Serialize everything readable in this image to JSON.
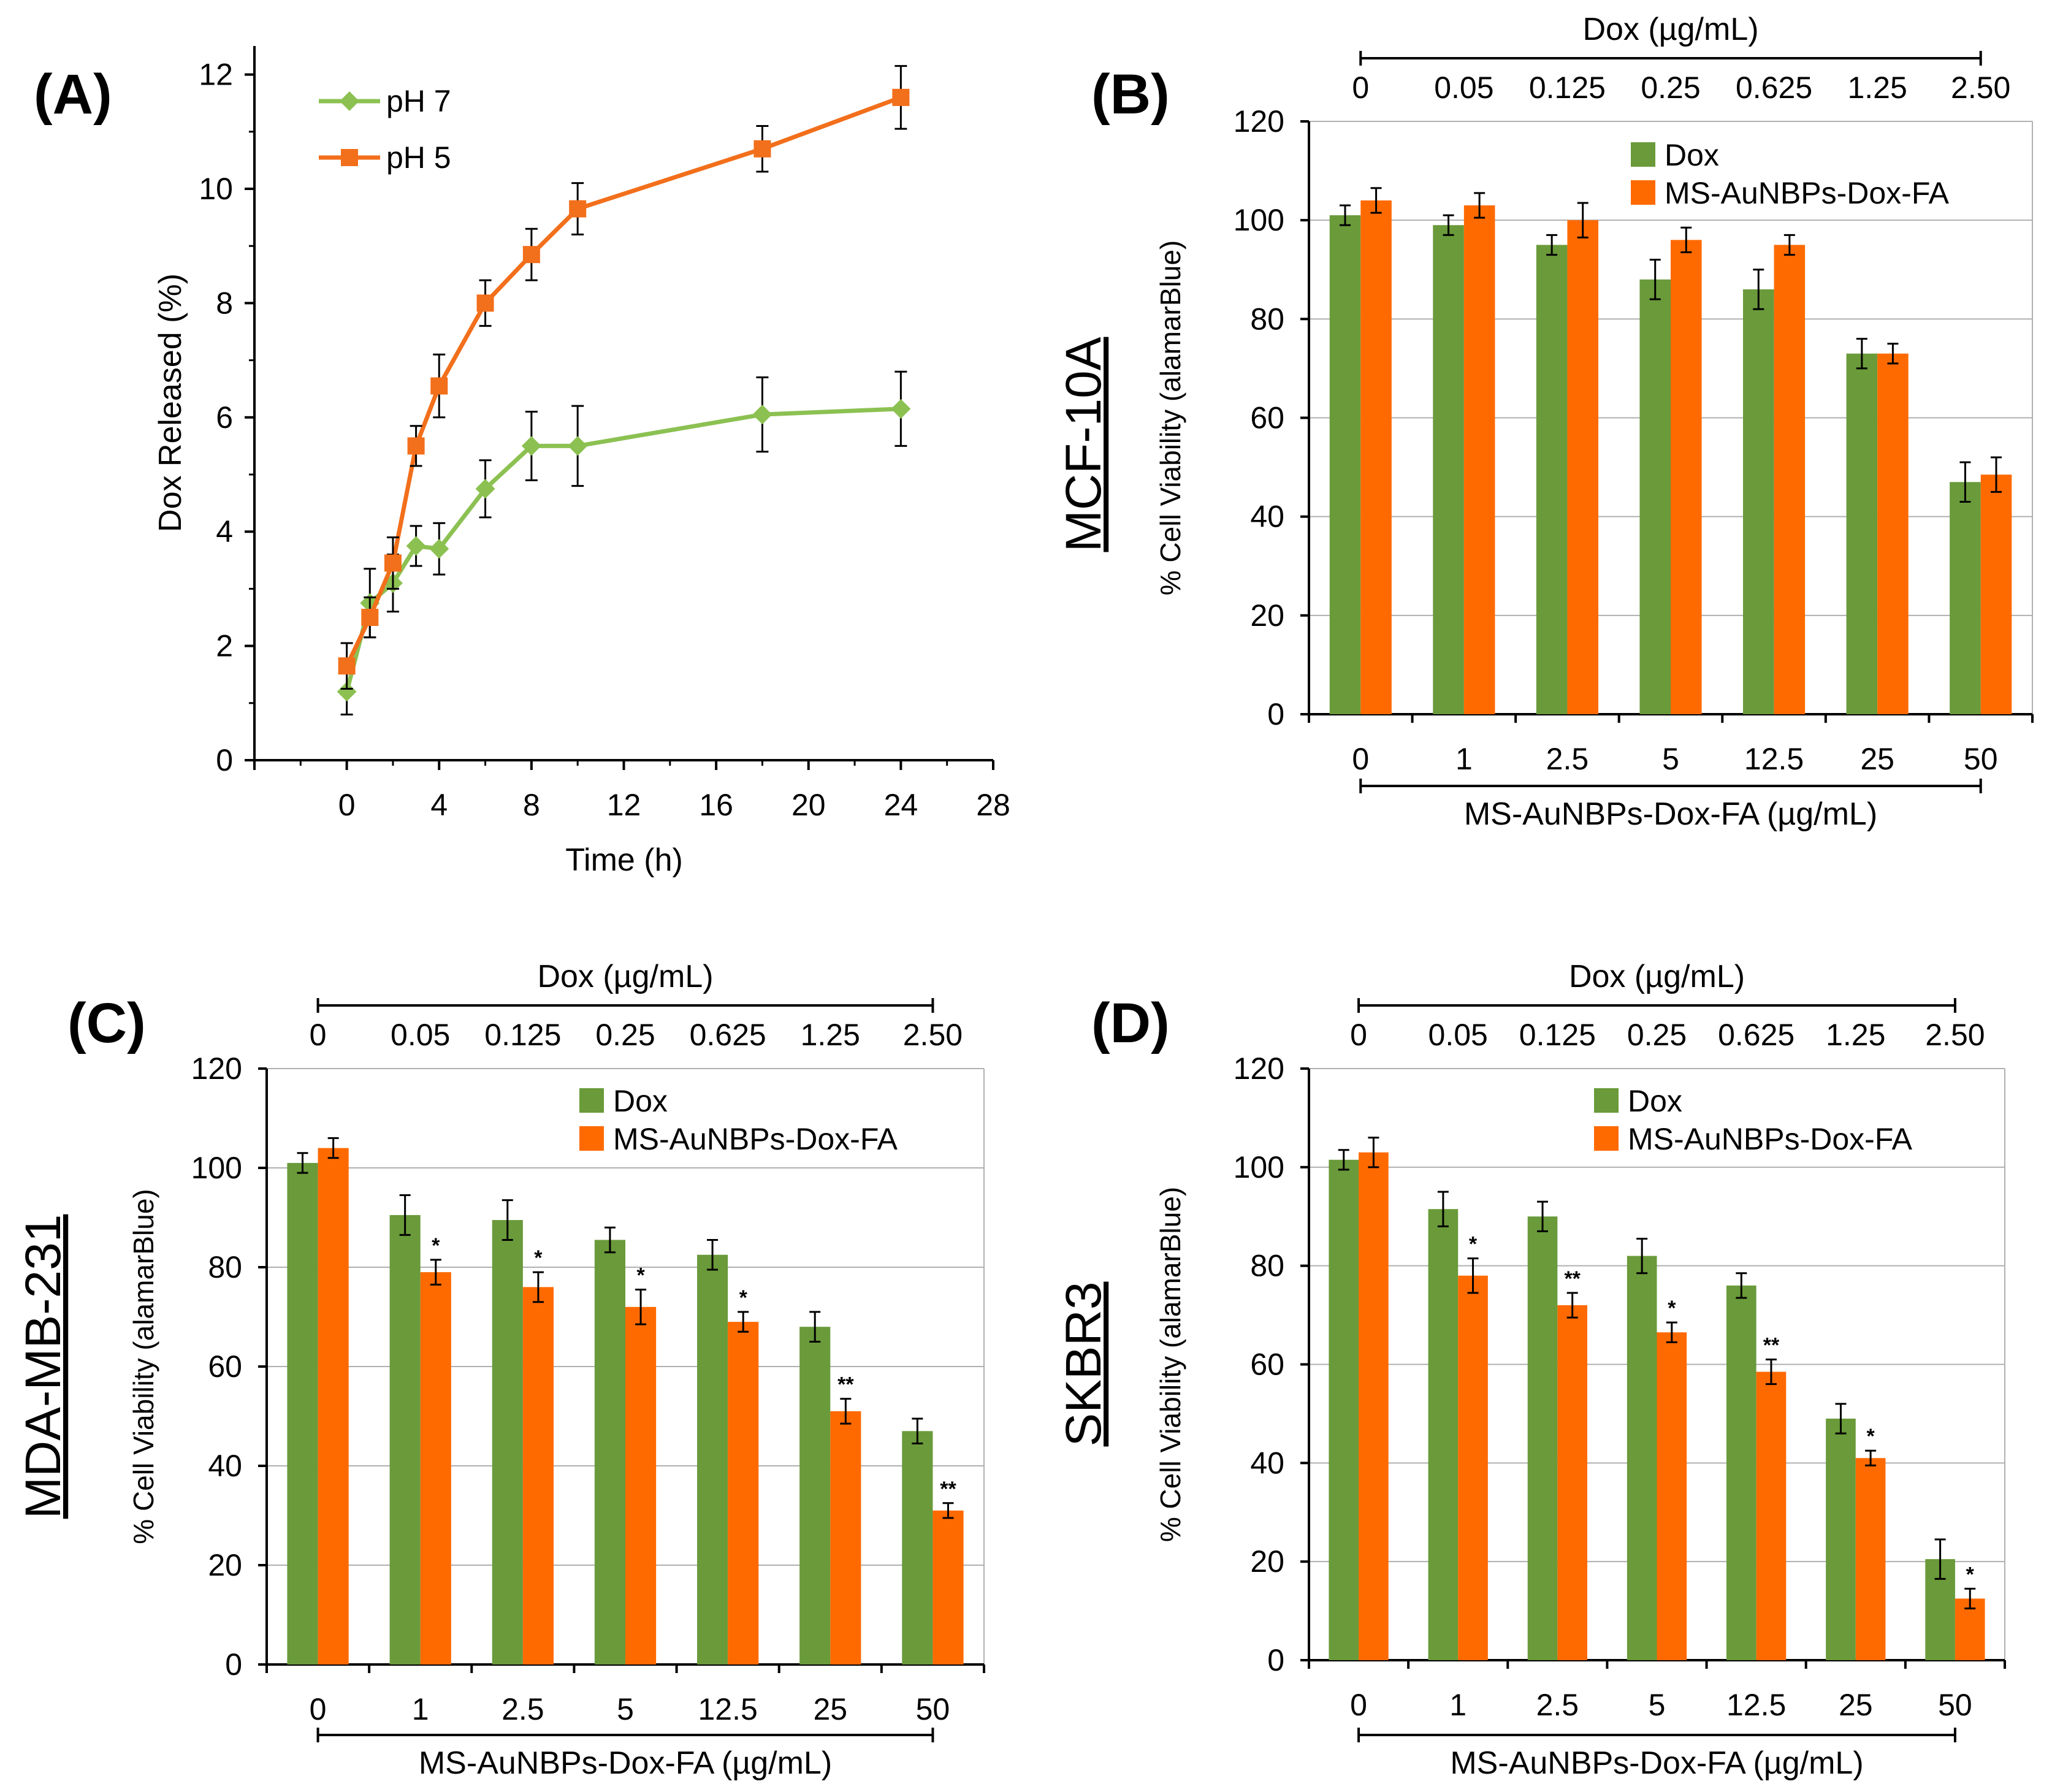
{
  "colors": {
    "green": "#6a9a3a",
    "orange": "#ff6a00",
    "line_green": "#8cc152",
    "line_orange": "#f26f1b"
  },
  "chart_data": [
    {
      "panel": "(A)",
      "type": "line",
      "xlabel": "Time (h)",
      "ylabel": "Dox Released (%)",
      "xlim": [
        -4,
        28
      ],
      "ylim": [
        0,
        12.5
      ],
      "xticks": [
        "0",
        "4",
        "8",
        "12",
        "16",
        "20",
        "24",
        "28"
      ],
      "yticks": [
        "0",
        "2",
        "4",
        "6",
        "8",
        "10",
        "12"
      ],
      "series": [
        {
          "name": "pH 7",
          "color": "#8cc152",
          "marker": "diamond",
          "x": [
            0,
            1,
            2,
            3,
            4,
            6,
            8,
            10,
            18,
            24
          ],
          "y": [
            1.2,
            2.75,
            3.1,
            3.75,
            3.7,
            4.75,
            5.5,
            5.5,
            6.05,
            6.15
          ],
          "err": [
            0.4,
            0.6,
            0.5,
            0.35,
            0.45,
            0.5,
            0.6,
            0.7,
            0.65,
            0.65
          ]
        },
        {
          "name": "pH 5",
          "color": "#f26f1b",
          "marker": "square",
          "x": [
            0,
            1,
            2,
            3,
            4,
            6,
            8,
            10,
            18,
            24
          ],
          "y": [
            1.65,
            2.5,
            3.45,
            5.5,
            6.55,
            8.0,
            8.85,
            9.65,
            10.7,
            11.6
          ],
          "err": [
            0.4,
            0.35,
            0.45,
            0.35,
            0.55,
            0.4,
            0.45,
            0.45,
            0.4,
            0.55
          ]
        }
      ]
    },
    {
      "panel": "(B)",
      "type": "bar",
      "cell_line": "MCF-10A",
      "ylabel": "% Cell Viability (alamarBlue)",
      "top_axis_title": "Dox (µg/mL)",
      "top_ticks": [
        "0",
        "0.05",
        "0.125",
        "0.25",
        "0.625",
        "1.25",
        "2.50"
      ],
      "bottom_axis_title": "MS-AuNBPs-Dox-FA (µg/mL)",
      "categories": [
        "0",
        "1",
        "2.5",
        "5",
        "12.5",
        "25",
        "50"
      ],
      "ylim": [
        0,
        120
      ],
      "yticks": [
        "0",
        "20",
        "40",
        "60",
        "80",
        "100",
        "120"
      ],
      "series": [
        {
          "name": "Dox",
          "values": [
            101,
            99,
            95,
            88,
            86,
            73,
            47
          ],
          "err": [
            2,
            2,
            2,
            4,
            4,
            3,
            4
          ]
        },
        {
          "name": "MS-AuNBPs-Dox-FA",
          "values": [
            104,
            103,
            100,
            96,
            95,
            73,
            48.5
          ],
          "err": [
            2.5,
            2.5,
            3.5,
            2.5,
            2,
            2,
            3.5
          ],
          "stars": [
            "",
            "",
            "",
            "",
            "",
            "",
            ""
          ]
        }
      ]
    },
    {
      "panel": "(C)",
      "type": "bar",
      "cell_line": "MDA-MB-231",
      "ylabel": "% Cell Viability (alamarBlue)",
      "top_axis_title": "Dox (µg/mL)",
      "top_ticks": [
        "0",
        "0.05",
        "0.125",
        "0.25",
        "0.625",
        "1.25",
        "2.50"
      ],
      "bottom_axis_title": "MS-AuNBPs-Dox-FA (µg/mL)",
      "categories": [
        "0",
        "1",
        "2.5",
        "5",
        "12.5",
        "25",
        "50"
      ],
      "ylim": [
        0,
        120
      ],
      "yticks": [
        "0",
        "20",
        "40",
        "60",
        "80",
        "100",
        "120"
      ],
      "series": [
        {
          "name": "Dox",
          "values": [
            101,
            90.5,
            89.5,
            85.5,
            82.5,
            68,
            47
          ],
          "err": [
            2,
            4,
            4,
            2.5,
            3,
            3,
            2.5
          ]
        },
        {
          "name": "MS-AuNBPs-Dox-FA",
          "values": [
            104,
            79,
            76,
            72,
            69,
            51,
            31
          ],
          "err": [
            2,
            2.5,
            3,
            3.5,
            2,
            2.5,
            1.5
          ],
          "stars": [
            "",
            "*",
            "*",
            "*",
            "*",
            "**",
            "**"
          ]
        }
      ]
    },
    {
      "panel": "(D)",
      "type": "bar",
      "cell_line": "SKBR3",
      "ylabel": "% Cell Viability (alamarBlue)",
      "top_axis_title": "Dox (µg/mL)",
      "top_ticks": [
        "0",
        "0.05",
        "0.125",
        "0.25",
        "0.625",
        "1.25",
        "2.50"
      ],
      "bottom_axis_title": "MS-AuNBPs-Dox-FA (µg/mL)",
      "categories": [
        "0",
        "1",
        "2.5",
        "5",
        "12.5",
        "25",
        "50"
      ],
      "ylim": [
        0,
        120
      ],
      "yticks": [
        "0",
        "20",
        "40",
        "60",
        "80",
        "100",
        "120"
      ],
      "series": [
        {
          "name": "Dox",
          "values": [
            101.5,
            91.5,
            90,
            82,
            76,
            49,
            20.5
          ],
          "err": [
            2,
            3.5,
            3,
            3.5,
            2.5,
            3,
            4
          ]
        },
        {
          "name": "MS-AuNBPs-Dox-FA",
          "values": [
            103,
            78,
            72,
            66.5,
            58.5,
            41,
            12.5
          ],
          "err": [
            3,
            3.5,
            2.5,
            2,
            2.5,
            1.5,
            2
          ],
          "stars": [
            "",
            "*",
            "**",
            "*",
            "**",
            "*",
            "*"
          ]
        }
      ]
    }
  ]
}
